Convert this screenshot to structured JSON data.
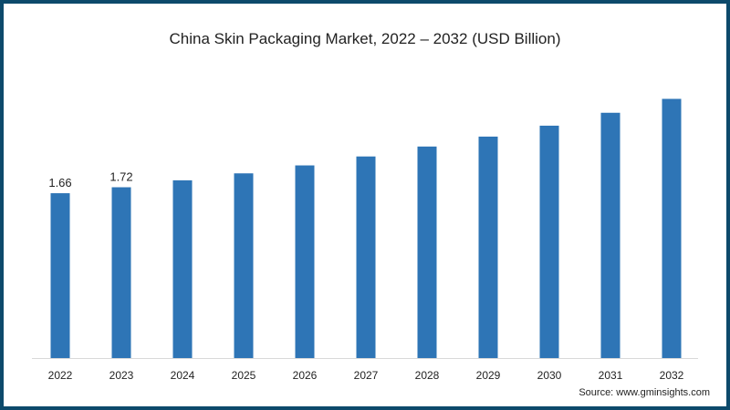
{
  "chart_data": {
    "type": "bar",
    "title": "China Skin Packaging Market, 2022 – 2032 (USD Billion)",
    "xlabel": "",
    "ylabel": "",
    "categories": [
      "2022",
      "2023",
      "2024",
      "2025",
      "2026",
      "2027",
      "2028",
      "2029",
      "2030",
      "2031",
      "2032"
    ],
    "values": [
      1.66,
      1.72,
      1.79,
      1.86,
      1.94,
      2.03,
      2.13,
      2.23,
      2.34,
      2.47,
      2.61
    ],
    "data_labels": {
      "2022": "1.66",
      "2023": "1.72"
    },
    "ylim": [
      0,
      3.0
    ],
    "grid": false,
    "bar_color": "#2e75b6",
    "source": "Source: www.gminsights.com"
  }
}
